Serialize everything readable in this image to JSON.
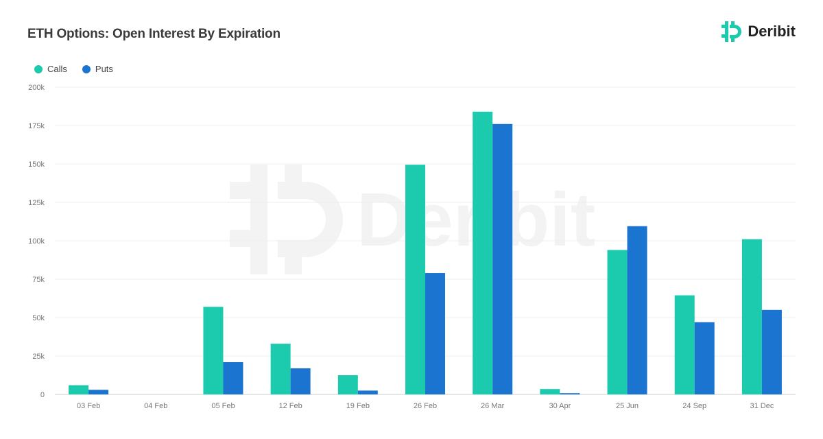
{
  "header": {
    "title": "ETH Options: Open Interest By Expiration",
    "brand_name": "Deribit"
  },
  "watermark_text": "Deribit",
  "colors": {
    "calls": "#1ccaae",
    "puts": "#1b74cf",
    "brand": "#1ccaae",
    "grid": "#eeeeee"
  },
  "chart_data": {
    "type": "bar",
    "title": "ETH Options: Open Interest By Expiration",
    "xlabel": "",
    "ylabel": "",
    "categories": [
      "03 Feb",
      "04 Feb",
      "05 Feb",
      "12 Feb",
      "19 Feb",
      "26 Feb",
      "26 Mar",
      "30 Apr",
      "25 Jun",
      "24 Sep",
      "31 Dec"
    ],
    "series": [
      {
        "name": "Calls",
        "values": [
          6000,
          0,
          57000,
          33000,
          12500,
          149500,
          184000,
          3500,
          94000,
          64500,
          101000
        ]
      },
      {
        "name": "Puts",
        "values": [
          3000,
          0,
          21000,
          17000,
          2500,
          79000,
          176000,
          800,
          109500,
          47000,
          55000
        ]
      }
    ],
    "ylim": [
      0,
      200000
    ],
    "yticks": [
      0,
      25000,
      50000,
      75000,
      100000,
      125000,
      150000,
      175000,
      200000
    ],
    "ytick_labels": [
      "0",
      "25k",
      "50k",
      "75k",
      "100k",
      "125k",
      "150k",
      "175k",
      "200k"
    ],
    "grid": true,
    "legend_position": "top-left"
  }
}
